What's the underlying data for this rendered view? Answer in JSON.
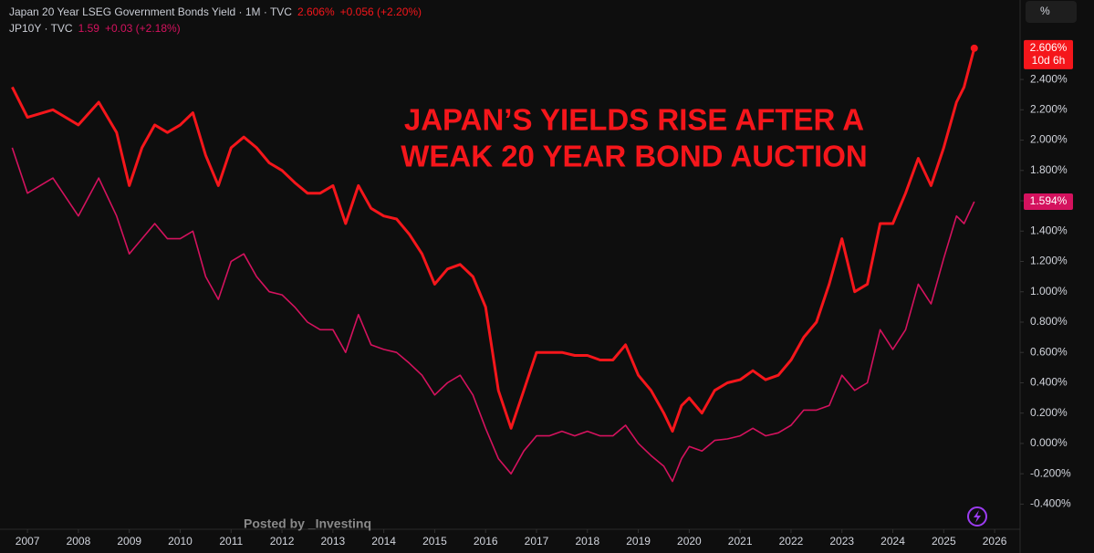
{
  "chart_data": {
    "type": "line",
    "title": [
      "JAPAN’S YIELDS RISE AFTER A",
      "WEAK 20 YEAR BOND AUCTION"
    ],
    "credit": "Posted by _Investinq",
    "scale_button": "%",
    "x": [
      2006.7,
      2007,
      2007.5,
      2008,
      2008.4,
      2008.75,
      2009,
      2009.25,
      2009.5,
      2009.75,
      2010,
      2010.25,
      2010.5,
      2010.75,
      2011,
      2011.25,
      2011.5,
      2011.75,
      2012,
      2012.25,
      2012.5,
      2012.75,
      2013,
      2013.25,
      2013.5,
      2013.75,
      2014,
      2014.25,
      2014.5,
      2014.75,
      2015,
      2015.25,
      2015.5,
      2015.75,
      2016,
      2016.25,
      2016.5,
      2016.75,
      2017,
      2017.25,
      2017.5,
      2017.75,
      2018,
      2018.25,
      2018.5,
      2018.75,
      2019,
      2019.25,
      2019.5,
      2019.67,
      2019.85,
      2020,
      2020.25,
      2020.5,
      2020.75,
      2021,
      2021.25,
      2021.5,
      2021.75,
      2022,
      2022.25,
      2022.5,
      2022.75,
      2023,
      2023.25,
      2023.5,
      2023.75,
      2024,
      2024.25,
      2024.5,
      2024.75,
      2025,
      2025.25,
      2025.4,
      2025.6
    ],
    "series": [
      {
        "name": "Japan 20 Year LSEG Government Bonds Yield · 1M · TVC",
        "color": "#f5161b",
        "header_value": "2.606%",
        "header_change": "+0.056 (+2.20%)",
        "badge_label": "2.606%",
        "badge_countdown": "10d 6h",
        "values": [
          2.35,
          2.15,
          2.2,
          2.1,
          2.25,
          2.05,
          1.7,
          1.95,
          2.1,
          2.05,
          2.1,
          2.18,
          1.9,
          1.7,
          1.95,
          2.02,
          1.95,
          1.85,
          1.8,
          1.72,
          1.65,
          1.65,
          1.7,
          1.45,
          1.7,
          1.55,
          1.5,
          1.48,
          1.38,
          1.25,
          1.05,
          1.15,
          1.18,
          1.1,
          0.9,
          0.35,
          0.1,
          0.35,
          0.6,
          0.6,
          0.6,
          0.58,
          0.58,
          0.55,
          0.55,
          0.65,
          0.45,
          0.35,
          0.2,
          0.08,
          0.25,
          0.3,
          0.2,
          0.35,
          0.4,
          0.42,
          0.48,
          0.42,
          0.45,
          0.55,
          0.7,
          0.8,
          1.05,
          1.35,
          1.0,
          1.05,
          1.45,
          1.45,
          1.65,
          1.88,
          1.7,
          1.95,
          2.25,
          2.35,
          2.606
        ]
      },
      {
        "name": "JP10Y · TVC",
        "color": "#d4125e",
        "header_value": "1.59",
        "header_change": "+0.03 (+2.18%)",
        "badge_label": "1.594%",
        "values": [
          1.95,
          1.65,
          1.75,
          1.5,
          1.75,
          1.5,
          1.25,
          1.35,
          1.45,
          1.35,
          1.35,
          1.4,
          1.1,
          0.95,
          1.2,
          1.25,
          1.1,
          1.0,
          0.98,
          0.9,
          0.8,
          0.75,
          0.75,
          0.6,
          0.85,
          0.65,
          0.62,
          0.6,
          0.53,
          0.45,
          0.32,
          0.4,
          0.45,
          0.32,
          0.1,
          -0.1,
          -0.2,
          -0.05,
          0.05,
          0.05,
          0.08,
          0.05,
          0.08,
          0.05,
          0.05,
          0.12,
          0.0,
          -0.08,
          -0.15,
          -0.25,
          -0.1,
          -0.02,
          -0.05,
          0.02,
          0.03,
          0.05,
          0.1,
          0.05,
          0.07,
          0.12,
          0.22,
          0.22,
          0.25,
          0.45,
          0.35,
          0.4,
          0.75,
          0.62,
          0.75,
          1.05,
          0.92,
          1.22,
          1.5,
          1.45,
          1.594
        ]
      }
    ],
    "xlim": [
      2006.46,
      2026.5
    ],
    "xticks": [
      2007,
      2008,
      2009,
      2010,
      2011,
      2012,
      2013,
      2014,
      2015,
      2016,
      2017,
      2018,
      2019,
      2020,
      2021,
      2022,
      2023,
      2024,
      2025,
      2026
    ],
    "ylim": [
      -0.566,
      2.924
    ],
    "yticks": [
      {
        "value": 2.4,
        "label": "2.400%"
      },
      {
        "value": 2.2,
        "label": "2.200%"
      },
      {
        "value": 2.0,
        "label": "2.000%"
      },
      {
        "value": 1.8,
        "label": "1.800%"
      },
      {
        "value": 1.6,
        "label": "1.600%"
      },
      {
        "value": 1.4,
        "label": "1.400%"
      },
      {
        "value": 1.2,
        "label": "1.200%"
      },
      {
        "value": 1.0,
        "label": "1.000%"
      },
      {
        "value": 0.8,
        "label": "0.800%"
      },
      {
        "value": 0.6,
        "label": "0.600%"
      },
      {
        "value": 0.4,
        "label": "0.400%"
      },
      {
        "value": 0.2,
        "label": "0.200%"
      },
      {
        "value": 0.0,
        "label": "0.000%"
      },
      {
        "value": -0.2,
        "label": "-0.200%"
      },
      {
        "value": -0.4,
        "label": "-0.400%"
      }
    ],
    "grid": false
  }
}
